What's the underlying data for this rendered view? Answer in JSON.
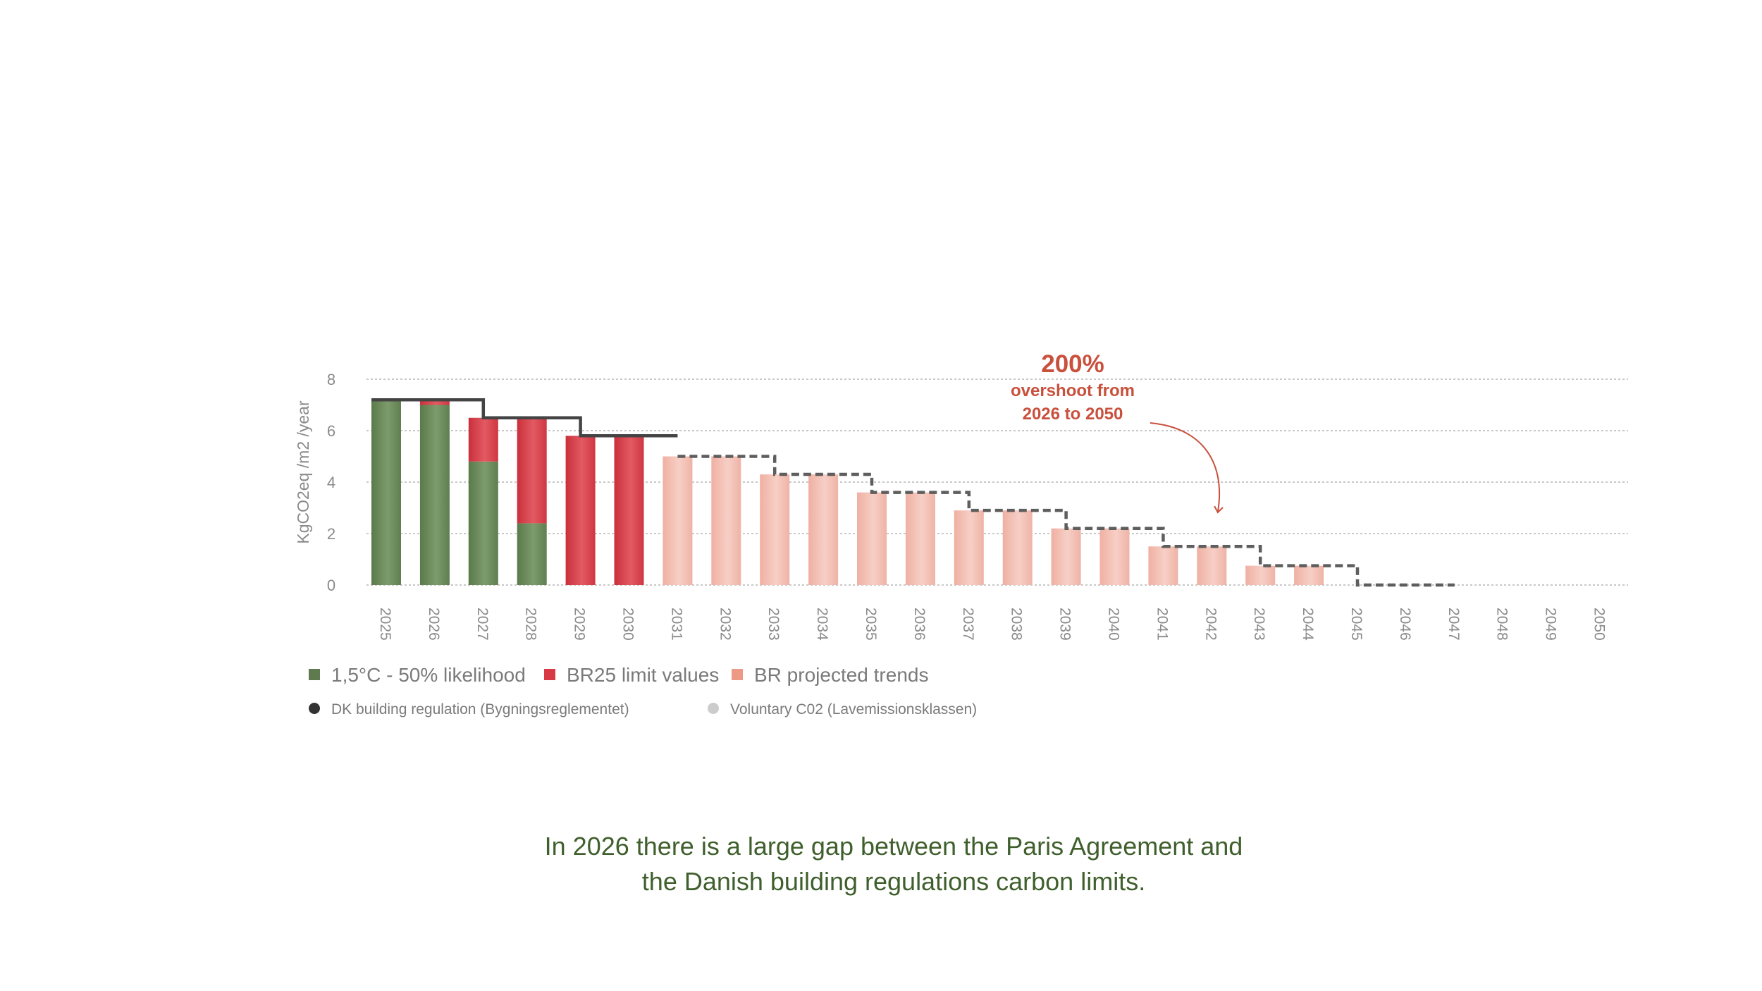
{
  "chart_data": {
    "type": "bar",
    "ylabel": "KgCO2eq /m2 /year",
    "ylim": [
      0,
      8
    ],
    "yticks": [
      "0",
      "2",
      "4",
      "6",
      "8"
    ],
    "grid": true,
    "categories": [
      "2025",
      "2026",
      "2027",
      "2028",
      "2029",
      "2030",
      "2031",
      "2032",
      "2033",
      "2034",
      "2035",
      "2036",
      "2037",
      "2038",
      "2039",
      "2040",
      "2041",
      "2042",
      "2043",
      "2044",
      "2045",
      "2046",
      "2047",
      "2048",
      "2049",
      "2050"
    ],
    "series": [
      {
        "name": "1,5°C - 50% likelihood",
        "color": "#6b8a5c",
        "values": [
          7.2,
          7.0,
          4.8,
          2.4,
          0,
          0,
          0,
          0,
          0,
          0,
          0,
          0,
          0,
          0,
          0,
          0,
          0,
          0,
          0,
          0,
          0,
          0,
          0,
          0,
          0,
          0
        ]
      },
      {
        "name": "BR25 limit values",
        "color": "#d73a45",
        "values": [
          0,
          0.2,
          1.7,
          4.1,
          5.8,
          5.8,
          0,
          0,
          0,
          0,
          0,
          0,
          0,
          0,
          0,
          0,
          0,
          0,
          0,
          0,
          0,
          0,
          0,
          0,
          0,
          0
        ]
      },
      {
        "name": "BR projected trends",
        "color": "#f0b5a8",
        "values": [
          0,
          0,
          0,
          0,
          0,
          0,
          5.0,
          5.0,
          4.3,
          4.3,
          3.6,
          3.6,
          2.9,
          2.9,
          2.2,
          2.2,
          1.5,
          1.5,
          0.75,
          0.75,
          0,
          0,
          0,
          0,
          0,
          0
        ]
      }
    ],
    "lines": [
      {
        "name": "DK building regulation (Bygningsreglementet)",
        "color": "#444444",
        "steps": [
          [
            2025,
            7.2
          ],
          [
            2027,
            6.5
          ],
          [
            2029,
            5.8
          ]
        ],
        "end": 2031,
        "style": "solid"
      },
      {
        "name": "DK building regulation (Bygningsreglementet)",
        "color": "#5e5e5e",
        "steps": [
          [
            2031,
            5.0
          ],
          [
            2033,
            4.3
          ],
          [
            2035,
            3.6
          ],
          [
            2037,
            2.9
          ],
          [
            2039,
            2.2
          ],
          [
            2041,
            1.5
          ],
          [
            2043,
            0.75
          ],
          [
            2045,
            0
          ]
        ],
        "end": 2047,
        "style": "dashed"
      }
    ],
    "legend": [
      {
        "label": "1,5°C - 50% likelihood",
        "color": "#5e7a4e",
        "shape": "square"
      },
      {
        "label": "BR25 limit values",
        "color": "#d73a45",
        "shape": "square"
      },
      {
        "label": "BR projected trends",
        "color": "#ec9a86",
        "shape": "square"
      },
      {
        "label": "DK building regulation (Bygningsreglementet)",
        "color": "#333333",
        "shape": "circle"
      },
      {
        "label": "Voluntary C02 (Lavemissionsklassen)",
        "color": "#cccccc",
        "shape": "circle"
      }
    ],
    "annotation": {
      "big": "200%",
      "line1": "overshoot from",
      "line2": "2026 to 2050",
      "color": "#c9503d"
    }
  },
  "caption": {
    "line1": "In 2026 there is a large gap between the Paris Agreement and",
    "line2": "the Danish building regulations carbon limits."
  }
}
